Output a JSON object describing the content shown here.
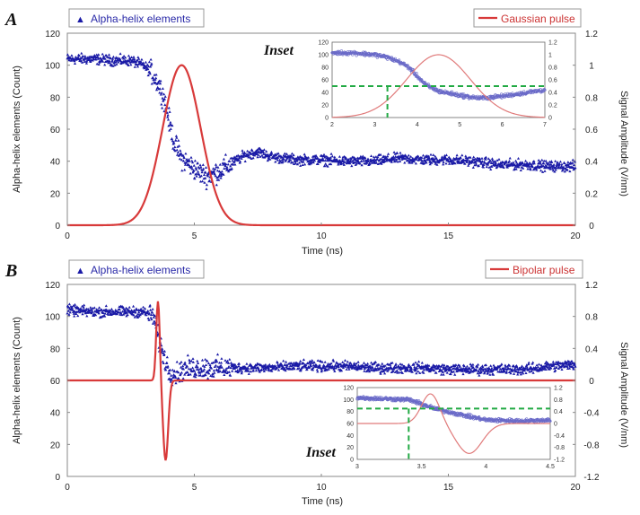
{
  "figure": {
    "colors": {
      "blue": "#1a1aa6",
      "red": "#d83a3a",
      "red_inset": "#e07a7a",
      "blue_inset": "#6a6ac8",
      "green": "#22aa44"
    }
  },
  "chart_data": [
    {
      "panel_label": "A",
      "type": "scatter+line",
      "xlabel": "Time (ns)",
      "ylabel": "Alpha-helix elements (Count)",
      "y2label": "Signal Amplitude (V/nm)",
      "xlim": [
        0,
        20
      ],
      "ylim": [
        0,
        120
      ],
      "y2lim": [
        0,
        1.2
      ],
      "xticks": [
        "0",
        "5",
        "10",
        "15",
        "20"
      ],
      "yticks": [
        "0",
        "20",
        "40",
        "60",
        "80",
        "100",
        "120"
      ],
      "y2ticks": [
        "0",
        "0.2",
        "0.4",
        "0.6",
        "0.8",
        "1",
        "1.2"
      ],
      "legend": [
        {
          "name": "Alpha-helix elements",
          "placement": "top-left"
        },
        {
          "name": "Gaussian pulse",
          "placement": "top-right"
        }
      ],
      "series": [
        {
          "name": "Alpha-helix elements",
          "kind": "scatter",
          "axis": "left",
          "x": [
            0,
            1,
            2,
            2.5,
            3,
            3.3,
            3.6,
            3.8,
            4.0,
            4.2,
            4.5,
            4.8,
            5.2,
            5.5,
            6,
            6.5,
            7,
            7.5,
            8,
            9,
            10,
            11,
            12,
            13,
            14,
            15,
            16,
            17,
            18,
            19,
            20
          ],
          "values": [
            104,
            104,
            103,
            103,
            100,
            96,
            88,
            80,
            66,
            52,
            42,
            38,
            33,
            31,
            34,
            39,
            44,
            46,
            43,
            41,
            41,
            40,
            40,
            42,
            41,
            41,
            40,
            38,
            38,
            37,
            37
          ]
        },
        {
          "name": "Gaussian pulse",
          "kind": "line",
          "axis": "right",
          "function": "gaussian",
          "peak_time": 4.5,
          "amplitude": 1.0,
          "sigma": 0.75
        }
      ],
      "inset": {
        "label": "Inset",
        "xlim": [
          2,
          7
        ],
        "ylim": [
          0,
          120
        ],
        "y2lim": [
          0,
          1.2
        ],
        "xticks": [
          "2",
          "3",
          "4",
          "5",
          "6",
          "7"
        ],
        "yticks": [
          "0",
          "20",
          "40",
          "60",
          "80",
          "100",
          "120"
        ],
        "y2ticks": [
          "0",
          "0.2",
          "0.4",
          "0.6",
          "0.8",
          "1",
          "1.2"
        ],
        "hline_y": 50,
        "vline_x": 3.3
      }
    },
    {
      "panel_label": "B",
      "type": "scatter+line",
      "xlabel": "Time (ns)",
      "ylabel": "Alpha-helix elements (Count)",
      "y2label": "Signal Amplitude (V/nm)",
      "xlim": [
        0,
        20
      ],
      "ylim": [
        0,
        120
      ],
      "y2lim": [
        -1.2,
        1.2
      ],
      "xticks": [
        "0",
        "5",
        "10",
        "15",
        "20"
      ],
      "yticks": [
        "0",
        "20",
        "40",
        "60",
        "80",
        "100",
        "120"
      ],
      "y2ticks": [
        "-1.2",
        "-0.8",
        "-0.4",
        "0",
        "0.4",
        "0.8",
        "1.2"
      ],
      "legend": [
        {
          "name": "Alpha-helix elements",
          "placement": "top-left"
        },
        {
          "name": "Bipolar pulse",
          "placement": "top-right"
        }
      ],
      "series": [
        {
          "name": "Alpha-helix elements",
          "kind": "scatter",
          "axis": "left",
          "x": [
            0,
            1,
            2,
            3,
            3.4,
            3.6,
            3.8,
            4.0,
            4.3,
            4.6,
            5,
            6,
            7,
            8,
            9,
            10,
            11,
            12,
            13,
            14,
            15,
            16,
            17,
            18,
            19,
            20
          ],
          "values": [
            104,
            103,
            103,
            103,
            100,
            85,
            75,
            66,
            64,
            67,
            68,
            68,
            68,
            68,
            69,
            69,
            69,
            68,
            68,
            68,
            67,
            67,
            67,
            67,
            69,
            70
          ]
        },
        {
          "name": "Bipolar pulse",
          "kind": "line",
          "axis": "right",
          "function": "bipolar",
          "center_time": 3.75,
          "positive_peak": 1.0,
          "negative_peak": -1.0
        }
      ],
      "inset": {
        "label": "Inset",
        "xlim": [
          3,
          4.5
        ],
        "ylim": [
          0,
          120
        ],
        "y2lim": [
          -1.2,
          1.2
        ],
        "xticks": [
          "3",
          "3.5",
          "4",
          "4.5"
        ],
        "yticks": [
          "0",
          "20",
          "40",
          "60",
          "80",
          "100",
          "120"
        ],
        "y2ticks": [
          "-1.2",
          "-0.8",
          "-0.4",
          "0",
          "0.4",
          "0.8",
          "1.2"
        ],
        "hline_y": 85,
        "vline_x": 3.4
      }
    }
  ]
}
